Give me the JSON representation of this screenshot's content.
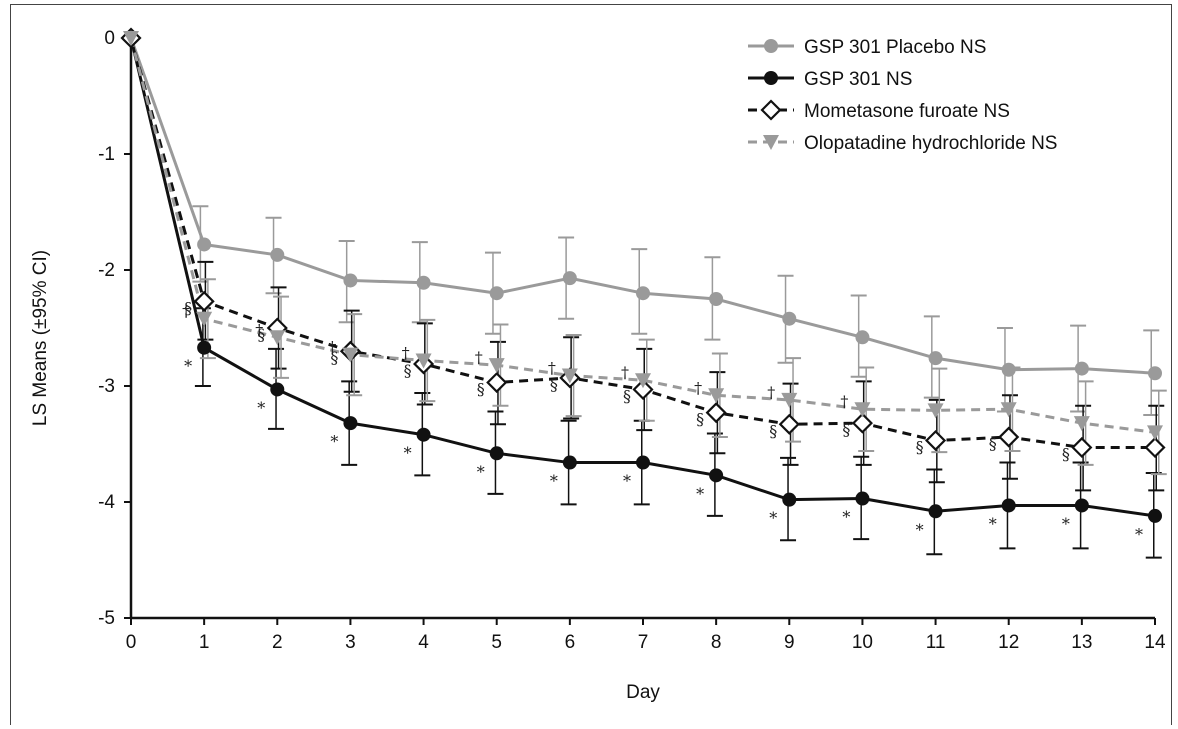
{
  "chart_data": {
    "type": "line",
    "title": "",
    "xlabel": "Day",
    "ylabel": "LS Means (±95% CI)",
    "xlim": [
      0,
      14
    ],
    "ylim": [
      -5,
      0
    ],
    "x_ticks": [
      "0",
      "1",
      "2",
      "3",
      "4",
      "5",
      "6",
      "7",
      "8",
      "9",
      "10",
      "11",
      "12",
      "13",
      "14"
    ],
    "y_ticks": [
      "0",
      "-1",
      "-2",
      "-3",
      "-4",
      "-5"
    ],
    "grid": false,
    "legend_position": "top-right",
    "x": [
      0,
      1,
      2,
      3,
      4,
      5,
      6,
      7,
      8,
      9,
      10,
      11,
      12,
      13,
      14
    ],
    "series": [
      {
        "name": "GSP 301 Placebo NS",
        "color": "#9a9a9a",
        "line_style": "solid",
        "marker": "circle",
        "values": [
          0,
          -1.78,
          -1.87,
          -2.09,
          -2.11,
          -2.2,
          -2.07,
          -2.2,
          -2.25,
          -2.42,
          -2.58,
          -2.76,
          -2.86,
          -2.85,
          -2.89
        ],
        "ci_low": [
          0,
          -2.1,
          -2.2,
          -2.45,
          -2.45,
          -2.55,
          -2.42,
          -2.55,
          -2.6,
          -2.8,
          -2.92,
          -3.1,
          -3.22,
          -3.22,
          -3.25
        ],
        "ci_high": [
          0,
          -1.45,
          -1.55,
          -1.75,
          -1.76,
          -1.85,
          -1.72,
          -1.82,
          -1.89,
          -2.05,
          -2.22,
          -2.4,
          -2.5,
          -2.48,
          -2.52
        ]
      },
      {
        "name": "GSP 301 NS",
        "color": "#111111",
        "line_style": "solid",
        "marker": "circle",
        "values": [
          0,
          -2.67,
          -3.03,
          -3.32,
          -3.42,
          -3.58,
          -3.66,
          -3.66,
          -3.77,
          -3.98,
          -3.97,
          -4.08,
          -4.03,
          -4.03,
          -4.12
        ],
        "ci_low": [
          0,
          -3.0,
          -3.37,
          -3.68,
          -3.77,
          -3.93,
          -4.02,
          -4.02,
          -4.12,
          -4.33,
          -4.32,
          -4.45,
          -4.4,
          -4.4,
          -4.48
        ],
        "ci_high": [
          0,
          -2.33,
          -2.68,
          -2.96,
          -3.06,
          -3.22,
          -3.3,
          -3.3,
          -3.41,
          -3.62,
          -3.61,
          -3.72,
          -3.66,
          -3.66,
          -3.75
        ],
        "markers": [
          "",
          "*",
          "*",
          "*",
          "*",
          "*",
          "*",
          "*",
          "*",
          "*",
          "*",
          "*",
          "*",
          "*",
          "*"
        ]
      },
      {
        "name": "Mometasone furoate NS",
        "color": "#111111",
        "line_style": "dashed",
        "marker": "diamond-open",
        "values": [
          0,
          -2.27,
          -2.5,
          -2.7,
          -2.81,
          -2.97,
          -2.93,
          -3.03,
          -3.23,
          -3.33,
          -3.32,
          -3.47,
          -3.44,
          -3.53,
          -3.53
        ],
        "ci_low": [
          0,
          -2.6,
          -2.85,
          -3.05,
          -3.16,
          -3.33,
          -3.28,
          -3.38,
          -3.58,
          -3.68,
          -3.68,
          -3.83,
          -3.8,
          -3.9,
          -3.9
        ],
        "ci_high": [
          0,
          -1.93,
          -2.15,
          -2.35,
          -2.46,
          -2.62,
          -2.58,
          -2.68,
          -2.88,
          -2.98,
          -2.96,
          -3.12,
          -3.08,
          -3.17,
          -3.17
        ],
        "markers": [
          "",
          "§",
          "§",
          "§",
          "§",
          "§",
          "§",
          "§",
          "§",
          "§",
          "§",
          "§",
          "§",
          "§",
          ""
        ]
      },
      {
        "name": "Olopatadine hydrochloride NS",
        "color": "#9a9a9a",
        "line_style": "dashed",
        "marker": "triangle-down",
        "values": [
          0,
          -2.42,
          -2.58,
          -2.73,
          -2.78,
          -2.82,
          -2.91,
          -2.95,
          -3.08,
          -3.12,
          -3.2,
          -3.21,
          -3.2,
          -3.32,
          -3.4
        ],
        "ci_low": [
          0,
          -2.76,
          -2.93,
          -3.08,
          -3.13,
          -3.17,
          -3.26,
          -3.3,
          -3.44,
          -3.48,
          -3.56,
          -3.57,
          -3.56,
          -3.68,
          -3.76
        ],
        "ci_high": [
          0,
          -2.08,
          -2.23,
          -2.38,
          -2.43,
          -2.47,
          -2.56,
          -2.6,
          -2.72,
          -2.76,
          -2.84,
          -2.85,
          -2.84,
          -2.96,
          -3.04
        ],
        "markers": [
          "",
          "†",
          "†",
          "†",
          "†",
          "†",
          "†",
          "†",
          "†",
          "†",
          "†",
          "",
          "",
          "",
          ""
        ]
      }
    ]
  }
}
